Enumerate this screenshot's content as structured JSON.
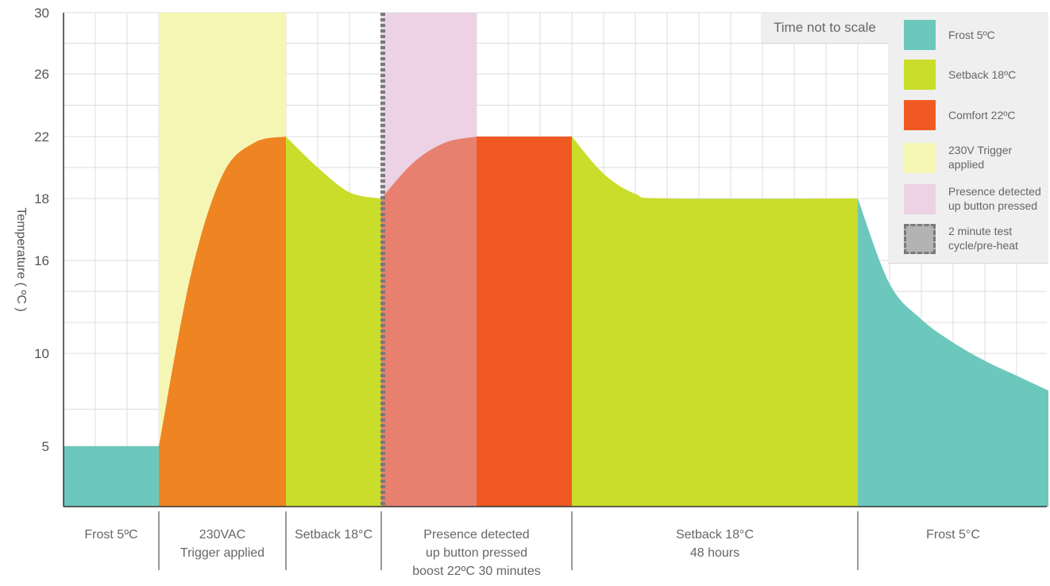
{
  "chart_data": {
    "type": "area",
    "ylabel": "Temperature ( ºC )",
    "xlabel_note": "Time not to scale",
    "yticks": [
      5,
      10,
      16,
      18,
      22,
      26,
      30
    ],
    "ylim": [
      2,
      30
    ],
    "grid": true,
    "colors": {
      "frost": "#6cc8bc",
      "setback": "#c9dd2a",
      "comfort": "#f05a22",
      "preheat": "#ef8423",
      "boost": "#e88070",
      "trigger_band": "#f6f6b4",
      "presence_band": "#ecd2e4",
      "test_cycle": "#7a7a7a"
    },
    "phases": [
      {
        "label": "Frost 5ºC",
        "x_start": 0,
        "x_end": 3,
        "temperature": 5,
        "mode": "frost"
      },
      {
        "label": "230VAC\nTrigger applied",
        "x_start": 3,
        "x_end": 7,
        "temperature_start": 5,
        "temperature_end": 22,
        "mode": "preheat"
      },
      {
        "label": "Setback 18°C",
        "x_start": 7,
        "x_end": 10,
        "temperature_start": 22,
        "temperature_end": 18,
        "mode": "setback"
      },
      {
        "label": "Presence detected\nup button pressed\nboost 22ºC 30 minutes",
        "x_start": 10,
        "x_end": 16,
        "temperature_start": 18,
        "temperature_end": 22,
        "mode": "comfort"
      },
      {
        "label": "Setback 18°C\n48 hours",
        "x_start": 16,
        "x_end": 25,
        "temperature_start": 22,
        "temperature_end": 18,
        "mode": "setback"
      },
      {
        "label": "Frost 5°C",
        "x_start": 25,
        "x_end": 31,
        "temperature_start": 18,
        "temperature_end": 8,
        "mode": "frost"
      }
    ],
    "series": [
      {
        "mode": "frost",
        "points": [
          [
            0,
            5
          ],
          [
            3,
            5
          ]
        ]
      },
      {
        "mode": "preheat",
        "points": [
          [
            3,
            5
          ],
          [
            4,
            15
          ],
          [
            5,
            19.5
          ],
          [
            6,
            21.6
          ],
          [
            7,
            22
          ]
        ]
      },
      {
        "mode": "setback",
        "points": [
          [
            7,
            22
          ],
          [
            8,
            20
          ],
          [
            9,
            18.4
          ],
          [
            10,
            18
          ]
        ]
      },
      {
        "mode": "boost",
        "points": [
          [
            10,
            18
          ],
          [
            11,
            20.3
          ],
          [
            12,
            21.6
          ],
          [
            13,
            22
          ]
        ]
      },
      {
        "mode": "comfort",
        "points": [
          [
            13,
            22
          ],
          [
            16,
            22
          ]
        ]
      },
      {
        "mode": "setback",
        "points": [
          [
            16,
            22
          ],
          [
            17,
            19.6
          ],
          [
            18,
            18.3
          ],
          [
            19,
            18
          ],
          [
            25,
            18
          ]
        ]
      },
      {
        "mode": "frost",
        "points": [
          [
            25,
            18
          ],
          [
            26,
            14.5
          ],
          [
            27,
            12.2
          ],
          [
            28,
            10.7
          ],
          [
            29,
            9.6
          ],
          [
            30,
            8.8
          ],
          [
            31,
            8
          ]
        ]
      }
    ],
    "bands": [
      {
        "mode": "trigger_band",
        "x_start": 3,
        "x_end": 7
      },
      {
        "mode": "presence_band",
        "x_start": 10,
        "x_end": 13
      }
    ],
    "test_cycle_x": 10,
    "legend_position": "top-right",
    "legend": [
      {
        "label": "Frost 5ºC",
        "mode": "frost"
      },
      {
        "label": "Setback 18ºC",
        "mode": "setback"
      },
      {
        "label": "Comfort 22ºC",
        "mode": "comfort"
      },
      {
        "label": "230V Trigger applied",
        "mode": "trigger_band"
      },
      {
        "label": "Presence detected up button pressed",
        "mode": "presence_band"
      },
      {
        "label": "2 minute test cycle/pre-heat",
        "mode": "test_cycle"
      }
    ]
  }
}
